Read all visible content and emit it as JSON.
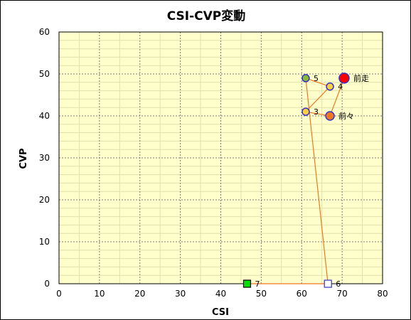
{
  "chart_data": {
    "type": "scatter",
    "title": "CSI-CVP変動",
    "xlabel": "CSI",
    "ylabel": "CVP",
    "xlim": [
      0,
      80
    ],
    "ylim": [
      0,
      60
    ],
    "x_ticks": [
      0,
      10,
      20,
      30,
      40,
      50,
      60,
      70,
      80
    ],
    "y_ticks": [
      0,
      10,
      20,
      30,
      40,
      50,
      60
    ],
    "grid": true,
    "legend": "none",
    "plot_background": "#ffffcc",
    "line_color": "#f07820",
    "points": [
      {
        "label": "前走",
        "x": 70.5,
        "y": 49,
        "marker": "circle",
        "fill": "#ff0000",
        "stroke": "#3333cc"
      },
      {
        "label": "前々",
        "x": 67,
        "y": 40,
        "marker": "circle",
        "fill": "#f07820",
        "stroke": "#3333cc"
      },
      {
        "label": "3",
        "x": 61,
        "y": 41,
        "marker": "circle",
        "fill": "#ffd040",
        "stroke": "#3333cc"
      },
      {
        "label": "4",
        "x": 67,
        "y": 47,
        "marker": "circle",
        "fill": "#ffd040",
        "stroke": "#3333cc"
      },
      {
        "label": "5",
        "x": 61,
        "y": 49,
        "marker": "circle",
        "fill": "#88bb33",
        "stroke": "#3333cc"
      },
      {
        "label": "6",
        "x": 66.5,
        "y": 0,
        "marker": "square",
        "fill": "#ffffff",
        "stroke": "#3333cc"
      },
      {
        "label": "7",
        "x": 46.5,
        "y": 0,
        "marker": "square",
        "fill": "#00e000",
        "stroke": "#000000"
      }
    ]
  }
}
